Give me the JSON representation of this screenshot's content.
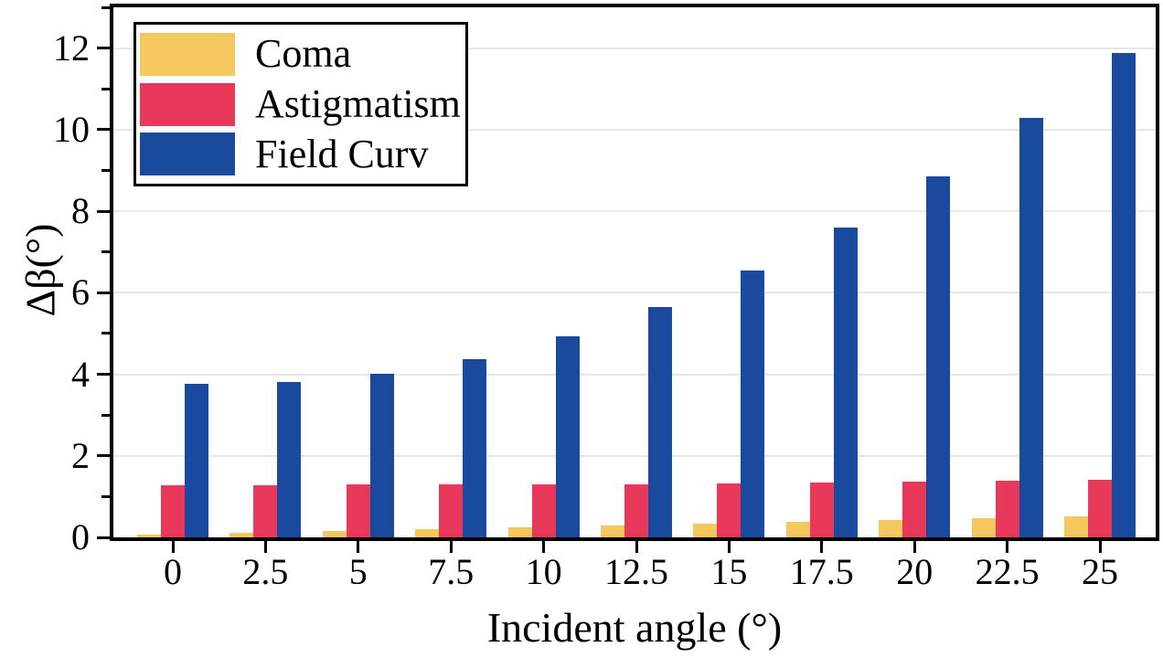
{
  "figure": {
    "background": "#ffffff",
    "axis_color": "#000000",
    "gridline_color": "#e7e7e7"
  },
  "chart_data": {
    "type": "bar",
    "title": "",
    "xlabel": "Incident angle (°)",
    "ylabel": "Δβ(°)",
    "categories": [
      "0",
      "2.5",
      "5",
      "7.5",
      "10",
      "12.5",
      "15",
      "17.5",
      "20",
      "22.5",
      "25"
    ],
    "series": [
      {
        "name": "Coma",
        "color": "#F5C85F",
        "values": [
          0.07,
          0.11,
          0.16,
          0.2,
          0.25,
          0.3,
          0.34,
          0.39,
          0.43,
          0.48,
          0.52
        ]
      },
      {
        "name": "Astigmatism",
        "color": "#E8395A",
        "values": [
          1.28,
          1.28,
          1.29,
          1.3,
          1.3,
          1.31,
          1.33,
          1.34,
          1.36,
          1.38,
          1.41
        ]
      },
      {
        "name": "Field Curv",
        "color": "#1A4A9D",
        "values": [
          3.77,
          3.82,
          4.02,
          4.38,
          4.94,
          5.65,
          6.54,
          7.6,
          8.85,
          10.28,
          11.88
        ]
      }
    ],
    "ylim": [
      0,
      13
    ],
    "yticks_major": [
      0,
      2,
      4,
      6,
      8,
      10,
      12
    ],
    "yticks_minor": [
      1,
      3,
      5,
      7,
      9,
      11,
      13
    ],
    "grid": "horizontal-major-only",
    "legend_position": "upper-left"
  }
}
